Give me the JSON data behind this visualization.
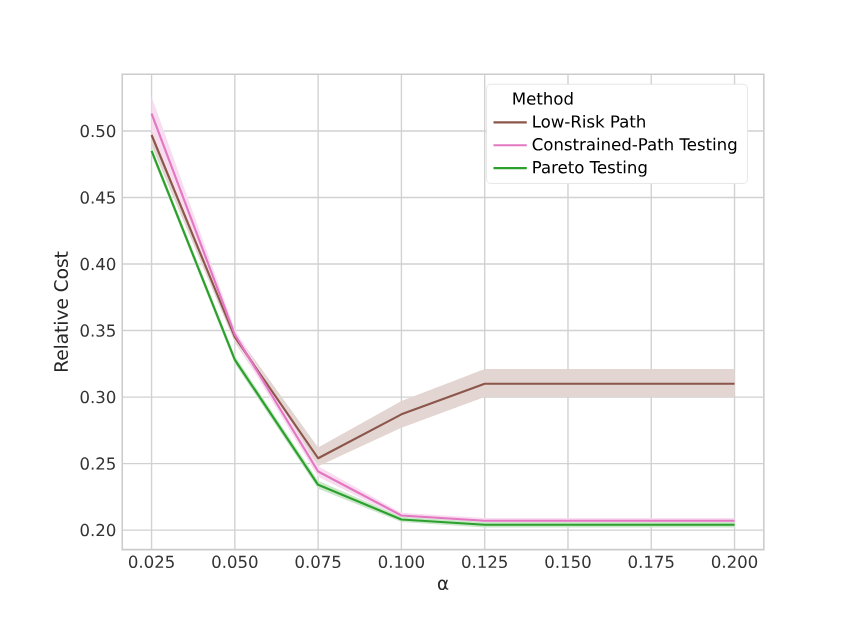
{
  "chart_data": {
    "type": "line",
    "xlabel": "α",
    "ylabel": "Relative Cost",
    "legend_title": "Method",
    "x": [
      0.025,
      0.05,
      0.075,
      0.1,
      0.125,
      0.15,
      0.175,
      0.2
    ],
    "series": [
      {
        "name": "Low-Risk Path",
        "color": "#8c564b",
        "values": [
          0.497,
          0.345,
          0.254,
          0.287,
          0.31,
          0.31,
          0.31,
          0.31
        ],
        "lower": [
          0.489,
          0.341,
          0.248,
          0.277,
          0.3,
          0.3,
          0.3,
          0.3
        ],
        "upper": [
          0.505,
          0.349,
          0.262,
          0.297,
          0.321,
          0.321,
          0.321,
          0.321
        ]
      },
      {
        "name": "Constrained-Path Testing",
        "color": "#e377c2",
        "values": [
          0.513,
          0.347,
          0.244,
          0.211,
          0.207,
          0.207,
          0.207,
          0.207
        ],
        "lower": [
          0.5,
          0.343,
          0.24,
          0.209,
          0.205,
          0.205,
          0.205,
          0.205
        ],
        "upper": [
          0.526,
          0.351,
          0.248,
          0.213,
          0.209,
          0.209,
          0.209,
          0.209
        ]
      },
      {
        "name": "Pareto Testing",
        "color": "#2ca02c",
        "values": [
          0.485,
          0.328,
          0.234,
          0.208,
          0.204,
          0.204,
          0.204,
          0.204
        ],
        "lower": [
          0.482,
          0.325,
          0.231,
          0.206,
          0.202,
          0.202,
          0.202,
          0.202
        ],
        "upper": [
          0.488,
          0.331,
          0.237,
          0.21,
          0.206,
          0.206,
          0.206,
          0.206
        ]
      }
    ],
    "xlim": [
      0.0162,
      0.2088
    ],
    "ylim": [
      0.1853,
      0.5426
    ],
    "xticks": [
      0.025,
      {
        "value": 0.05,
        "label": "0.050"
      },
      0.075,
      {
        "value": 0.1,
        "label": "0.100"
      },
      0.125,
      {
        "value": 0.15,
        "label": "0.150"
      },
      0.175,
      {
        "value": 0.2,
        "label": "0.200"
      }
    ],
    "yticks": [
      {
        "value": 0.2,
        "label": "0.20"
      },
      0.25,
      {
        "value": 0.3,
        "label": "0.30"
      },
      0.35,
      {
        "value": 0.4,
        "label": "0.40"
      },
      0.45,
      {
        "value": 0.5,
        "label": "0.50"
      }
    ],
    "grid": true,
    "legend": "top right",
    "marker": "none",
    "line_style": "solid"
  }
}
